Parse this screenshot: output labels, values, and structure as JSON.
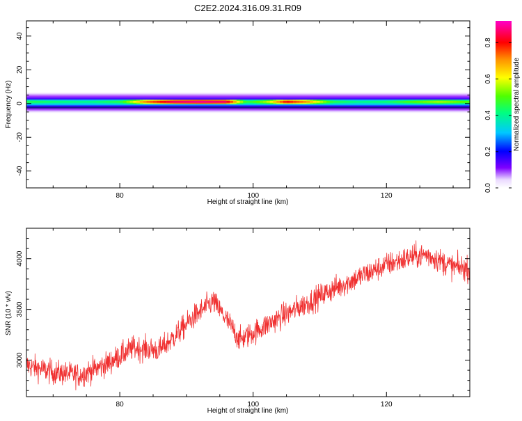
{
  "figure_title": "C2E2.2024.316.09.31.R09",
  "colors": {
    "snr_line": "#f03030",
    "axis": "#000000",
    "background": "#ffffff"
  },
  "chart_data": [
    {
      "type": "heatmap",
      "xlabel": "Height of straight line (km)",
      "ylabel": "Frequency (Hz)",
      "xlim": [
        66,
        132.5
      ],
      "ylim": [
        -50,
        49
      ],
      "x_ticks": [
        80,
        100,
        120
      ],
      "y_ticks": [
        40,
        20,
        0,
        -20,
        -40
      ],
      "grid": false,
      "colorbar": {
        "label": "Normalized spectral amplitude",
        "range": [
          0.0,
          0.92
        ],
        "ticks": [
          0.0,
          0.2,
          0.4,
          0.6,
          0.8
        ],
        "colormap": "rainbow (white-purple-blue-cyan-green-yellow-orange-red-magenta)"
      },
      "band": {
        "center_hz": 1,
        "description": "narrow horizontal energy band near 0 Hz, strongest (red) around 84-97 km and 102-108 km",
        "profile_km": [
          66,
          70,
          75,
          80,
          84,
          88,
          92,
          96,
          99,
          102,
          105,
          108,
          112,
          116,
          120,
          124,
          128,
          132
        ],
        "amplitude": [
          0.45,
          0.42,
          0.4,
          0.45,
          0.72,
          0.85,
          0.88,
          0.85,
          0.45,
          0.55,
          0.8,
          0.7,
          0.45,
          0.4,
          0.42,
          0.5,
          0.55,
          0.5
        ]
      }
    },
    {
      "type": "line",
      "xlabel": "Height of straight line (km)",
      "ylabel": "SNR (10 * v/v)",
      "xlim": [
        66,
        132.5
      ],
      "ylim": [
        2640,
        4300
      ],
      "x_ticks": [
        80,
        100,
        120
      ],
      "y_ticks": [
        3000,
        3500,
        4000
      ],
      "grid": false,
      "series": [
        {
          "description": "noisy SNR trace (noise ~±120) following the trend below",
          "trend_x": [
            66,
            70,
            74,
            78,
            82,
            86,
            88,
            91,
            94,
            96,
            98,
            100,
            104,
            108,
            112,
            116,
            120,
            124,
            126,
            128,
            130,
            132.5
          ],
          "trend_y": [
            2950,
            2880,
            2850,
            2960,
            3120,
            3100,
            3220,
            3420,
            3580,
            3400,
            3200,
            3270,
            3420,
            3560,
            3700,
            3820,
            3940,
            4020,
            4040,
            3980,
            3920,
            3900
          ]
        }
      ]
    }
  ]
}
